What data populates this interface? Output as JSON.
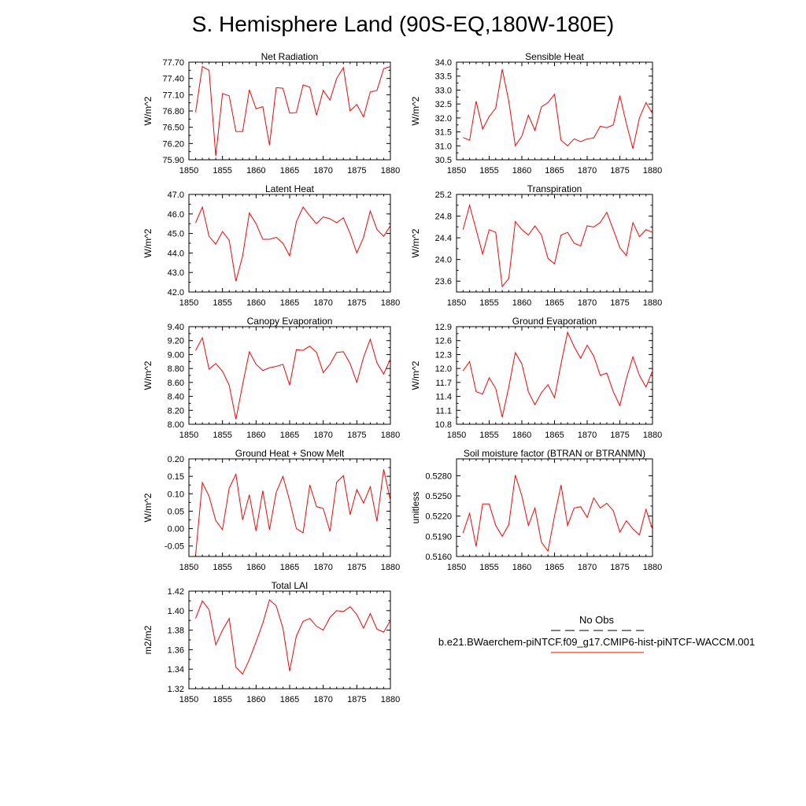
{
  "title": "S. Hemisphere Land (90S-EQ,180W-180E)",
  "colors": {
    "model_line": "#ff0000",
    "obs_line": "#000000",
    "axis": "#000000"
  },
  "legend": {
    "obs_label": "No Obs",
    "model_label": "b.e21.BWaerchem-piNTCF.f09_g17.CMIP6-hist-piNTCF-WACCM.001"
  },
  "chart_data": [
    {
      "type": "line",
      "title": "Net Radiation",
      "xlabel": "",
      "ylabel": "W/m^2",
      "xlim": [
        1850,
        1880
      ],
      "ylim": [
        75.9,
        77.7
      ],
      "xticks": [
        "1850",
        "1855",
        "1860",
        "1865",
        "1870",
        "1875",
        "1880"
      ],
      "yticks": [
        "75.90",
        "76.20",
        "76.50",
        "76.80",
        "77.10",
        "77.40",
        "77.70"
      ],
      "series": [
        {
          "x": [
            1851,
            1852,
            1853,
            1854,
            1855,
            1856,
            1857,
            1858,
            1859,
            1860,
            1861,
            1862,
            1863,
            1864,
            1865,
            1866,
            1867,
            1868,
            1869,
            1870,
            1871,
            1872,
            1873,
            1874,
            1875,
            1876,
            1877,
            1878,
            1879,
            1880
          ],
          "values": [
            76.78,
            77.62,
            77.55,
            75.97,
            77.12,
            77.08,
            76.42,
            76.42,
            77.19,
            76.84,
            76.88,
            76.17,
            77.23,
            77.22,
            76.76,
            76.77,
            77.28,
            77.24,
            76.72,
            77.18,
            77.0,
            77.4,
            77.6,
            76.8,
            76.92,
            76.69,
            77.15,
            77.18,
            77.58,
            77.62
          ]
        }
      ]
    },
    {
      "type": "line",
      "title": "Sensible Heat",
      "xlabel": "",
      "ylabel": "W/m^2",
      "xlim": [
        1850,
        1880
      ],
      "ylim": [
        30.5,
        34.0
      ],
      "xticks": [
        "1850",
        "1855",
        "1860",
        "1865",
        "1870",
        "1875",
        "1880"
      ],
      "yticks": [
        "30.5",
        "31.0",
        "31.5",
        "32.0",
        "32.5",
        "33.0",
        "33.5",
        "34.0"
      ],
      "series": [
        {
          "x": [
            1851,
            1852,
            1853,
            1854,
            1855,
            1856,
            1857,
            1858,
            1859,
            1860,
            1861,
            1862,
            1863,
            1864,
            1865,
            1866,
            1867,
            1868,
            1869,
            1870,
            1871,
            1872,
            1873,
            1874,
            1875,
            1876,
            1877,
            1878,
            1879,
            1880
          ],
          "values": [
            31.3,
            31.2,
            32.6,
            31.6,
            32.05,
            32.35,
            33.75,
            32.6,
            31.0,
            31.35,
            32.1,
            31.55,
            32.4,
            32.55,
            32.85,
            31.2,
            31.0,
            31.25,
            31.15,
            31.25,
            31.28,
            31.7,
            31.65,
            31.75,
            32.8,
            31.8,
            30.9,
            32.0,
            32.55,
            32.15
          ]
        }
      ]
    },
    {
      "type": "line",
      "title": "Latent Heat",
      "xlabel": "",
      "ylabel": "W/m^2",
      "xlim": [
        1850,
        1880
      ],
      "ylim": [
        42.0,
        47.0
      ],
      "xticks": [
        "1850",
        "1855",
        "1860",
        "1865",
        "1870",
        "1875",
        "1880"
      ],
      "yticks": [
        "42.0",
        "43.0",
        "44.0",
        "45.0",
        "46.0",
        "47.0"
      ],
      "series": [
        {
          "x": [
            1851,
            1852,
            1853,
            1854,
            1855,
            1856,
            1857,
            1858,
            1859,
            1860,
            1861,
            1862,
            1863,
            1864,
            1865,
            1866,
            1867,
            1868,
            1869,
            1870,
            1871,
            1872,
            1873,
            1874,
            1875,
            1876,
            1877,
            1878,
            1879,
            1880
          ],
          "values": [
            45.55,
            46.35,
            44.85,
            44.45,
            45.1,
            44.65,
            42.55,
            43.85,
            46.05,
            45.5,
            44.7,
            44.7,
            44.8,
            44.5,
            43.85,
            45.6,
            46.35,
            45.9,
            45.5,
            45.85,
            45.75,
            45.55,
            45.8,
            45.0,
            44.0,
            44.8,
            46.15,
            45.2,
            44.85,
            45.4
          ]
        }
      ]
    },
    {
      "type": "line",
      "title": "Transpiration",
      "xlabel": "",
      "ylabel": "W/m^2",
      "xlim": [
        1850,
        1880
      ],
      "ylim": [
        23.4,
        25.2
      ],
      "xticks": [
        "1850",
        "1855",
        "1860",
        "1865",
        "1870",
        "1875",
        "1880"
      ],
      "yticks": [
        "23.6",
        "24.0",
        "24.4",
        "24.8",
        "25.2"
      ],
      "series": [
        {
          "x": [
            1851,
            1852,
            1853,
            1854,
            1855,
            1856,
            1857,
            1858,
            1859,
            1860,
            1861,
            1862,
            1863,
            1864,
            1865,
            1866,
            1867,
            1868,
            1869,
            1870,
            1871,
            1872,
            1873,
            1874,
            1875,
            1876,
            1877,
            1878,
            1879,
            1880
          ],
          "values": [
            24.55,
            25.0,
            24.55,
            24.1,
            24.55,
            24.5,
            23.5,
            23.65,
            24.7,
            24.55,
            24.45,
            24.62,
            24.45,
            24.02,
            23.92,
            24.45,
            24.5,
            24.3,
            24.25,
            24.62,
            24.6,
            24.68,
            24.87,
            24.55,
            24.22,
            24.07,
            24.68,
            24.42,
            24.55,
            24.5
          ]
        }
      ]
    },
    {
      "type": "line",
      "title": "Canopy Evaporation",
      "xlabel": "",
      "ylabel": "W/m^2",
      "xlim": [
        1850,
        1880
      ],
      "ylim": [
        8.0,
        9.4
      ],
      "xticks": [
        "1850",
        "1855",
        "1860",
        "1865",
        "1870",
        "1875",
        "1880"
      ],
      "yticks": [
        "8.00",
        "8.20",
        "8.40",
        "8.60",
        "8.80",
        "9.00",
        "9.20",
        "9.40"
      ],
      "series": [
        {
          "x": [
            1851,
            1852,
            1853,
            1854,
            1855,
            1856,
            1857,
            1858,
            1859,
            1860,
            1861,
            1862,
            1863,
            1864,
            1865,
            1866,
            1867,
            1868,
            1869,
            1870,
            1871,
            1872,
            1873,
            1874,
            1875,
            1876,
            1877,
            1878,
            1879,
            1880
          ],
          "values": [
            9.06,
            9.24,
            8.79,
            8.87,
            8.76,
            8.56,
            8.07,
            8.57,
            9.04,
            8.86,
            8.77,
            8.81,
            8.83,
            8.86,
            8.56,
            9.07,
            9.06,
            9.12,
            9.03,
            8.74,
            8.86,
            9.03,
            9.04,
            8.87,
            8.6,
            8.96,
            9.22,
            8.88,
            8.72,
            8.94
          ]
        }
      ]
    },
    {
      "type": "line",
      "title": "Ground Evaporation",
      "xlabel": "",
      "ylabel": "W/m^2",
      "xlim": [
        1850,
        1880
      ],
      "ylim": [
        10.8,
        12.9
      ],
      "xticks": [
        "1850",
        "1855",
        "1860",
        "1865",
        "1870",
        "1875",
        "1880"
      ],
      "yticks": [
        "10.8",
        "11.1",
        "11.4",
        "11.7",
        "12.0",
        "12.3",
        "12.6",
        "12.9"
      ],
      "series": [
        {
          "x": [
            1851,
            1852,
            1853,
            1854,
            1855,
            1856,
            1857,
            1858,
            1859,
            1860,
            1861,
            1862,
            1863,
            1864,
            1865,
            1866,
            1867,
            1868,
            1869,
            1870,
            1871,
            1872,
            1873,
            1874,
            1875,
            1876,
            1877,
            1878,
            1879,
            1880
          ],
          "values": [
            11.95,
            12.15,
            11.5,
            11.45,
            11.8,
            11.57,
            10.95,
            11.6,
            12.34,
            12.1,
            11.5,
            11.22,
            11.48,
            11.65,
            11.37,
            12.1,
            12.78,
            12.47,
            12.22,
            12.5,
            12.27,
            11.85,
            11.9,
            11.5,
            11.2,
            11.78,
            12.25,
            11.85,
            11.6,
            11.95
          ]
        }
      ]
    },
    {
      "type": "line",
      "title": "Ground Heat + Snow Melt",
      "xlabel": "",
      "ylabel": "W/m^2",
      "xlim": [
        1850,
        1880
      ],
      "ylim": [
        -0.08,
        0.2
      ],
      "xticks": [
        "1850",
        "1855",
        "1860",
        "1865",
        "1870",
        "1875",
        "1880"
      ],
      "yticks": [
        "-0.05",
        "0.00",
        "0.05",
        "0.10",
        "0.15",
        "0.20"
      ],
      "series": [
        {
          "x": [
            1851,
            1852,
            1853,
            1854,
            1855,
            1856,
            1857,
            1858,
            1859,
            1860,
            1861,
            1862,
            1863,
            1864,
            1865,
            1866,
            1867,
            1868,
            1869,
            1870,
            1871,
            1872,
            1873,
            1874,
            1875,
            1876,
            1877,
            1878,
            1879,
            1880
          ],
          "values": [
            -0.075,
            0.132,
            0.093,
            0.023,
            -0.003,
            0.116,
            0.156,
            0.025,
            0.097,
            -0.007,
            0.109,
            -0.003,
            0.104,
            0.15,
            0.08,
            0.0,
            -0.012,
            0.125,
            0.063,
            0.058,
            -0.008,
            0.133,
            0.152,
            0.04,
            0.112,
            0.073,
            0.12,
            0.021,
            0.17,
            0.08
          ]
        }
      ]
    },
    {
      "type": "line",
      "title": "Soil moisture factor (BTRAN or BTRANMN)",
      "xlabel": "",
      "ylabel": "unitless",
      "xlim": [
        1850,
        1880
      ],
      "ylim": [
        0.516,
        0.5305
      ],
      "xticks": [
        "1850",
        "1855",
        "1860",
        "1865",
        "1870",
        "1875",
        "1880"
      ],
      "yticks": [
        "0.5160",
        "0.5190",
        "0.5220",
        "0.5250",
        "0.5280"
      ],
      "series": [
        {
          "x": [
            1851,
            1852,
            1853,
            1854,
            1855,
            1856,
            1857,
            1858,
            1859,
            1860,
            1861,
            1862,
            1863,
            1864,
            1865,
            1866,
            1867,
            1868,
            1869,
            1870,
            1871,
            1872,
            1873,
            1874,
            1875,
            1876,
            1877,
            1878,
            1879,
            1880
          ],
          "values": [
            0.5195,
            0.5224,
            0.5175,
            0.5238,
            0.5238,
            0.5206,
            0.519,
            0.5207,
            0.5281,
            0.525,
            0.5206,
            0.5232,
            0.5181,
            0.5168,
            0.522,
            0.5266,
            0.5206,
            0.5232,
            0.5234,
            0.5218,
            0.5247,
            0.5232,
            0.5239,
            0.5228,
            0.5196,
            0.5213,
            0.5201,
            0.5192,
            0.523,
            0.52
          ]
        }
      ]
    },
    {
      "type": "line",
      "title": "Total LAI",
      "xlabel": "",
      "ylabel": "m2/m2",
      "xlim": [
        1850,
        1880
      ],
      "ylim": [
        1.32,
        1.42
      ],
      "xticks": [
        "1850",
        "1855",
        "1860",
        "1865",
        "1870",
        "1875",
        "1880"
      ],
      "yticks": [
        "1.32",
        "1.34",
        "1.36",
        "1.38",
        "1.40",
        "1.42"
      ],
      "series": [
        {
          "x": [
            1851,
            1852,
            1853,
            1854,
            1855,
            1856,
            1857,
            1858,
            1859,
            1860,
            1861,
            1862,
            1863,
            1864,
            1865,
            1866,
            1867,
            1868,
            1869,
            1870,
            1871,
            1872,
            1873,
            1874,
            1875,
            1876,
            1877,
            1878,
            1879,
            1880
          ],
          "values": [
            1.392,
            1.41,
            1.401,
            1.365,
            1.38,
            1.392,
            1.342,
            1.335,
            1.35,
            1.368,
            1.387,
            1.411,
            1.405,
            1.382,
            1.338,
            1.374,
            1.389,
            1.392,
            1.384,
            1.38,
            1.393,
            1.4,
            1.399,
            1.404,
            1.396,
            1.382,
            1.397,
            1.381,
            1.378,
            1.39
          ]
        }
      ]
    }
  ]
}
